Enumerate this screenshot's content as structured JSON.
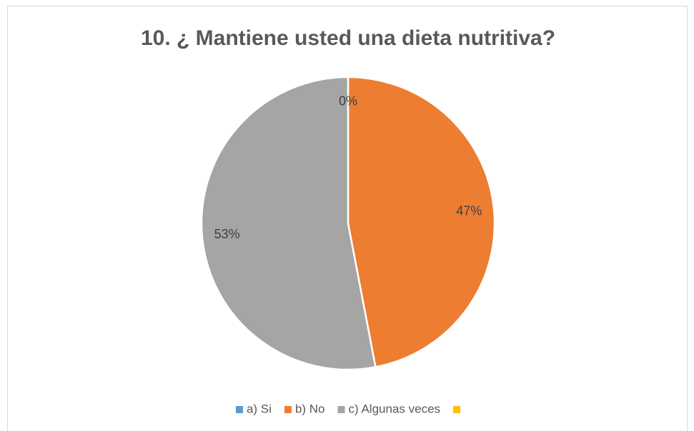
{
  "chart_data": {
    "type": "pie",
    "title": "10. ¿ Mantiene usted una dieta nutritiva?",
    "categories": [
      "a) Si",
      "b) No",
      "c) Algunas veces",
      null
    ],
    "values": [
      0,
      47,
      53,
      null
    ],
    "value_labels": [
      "0%",
      "47%",
      "53%",
      null
    ],
    "colors": [
      "#5b9bd5",
      "#ed7d31",
      "#a5a5a5",
      "#ffc000"
    ],
    "legend": "bottom"
  }
}
